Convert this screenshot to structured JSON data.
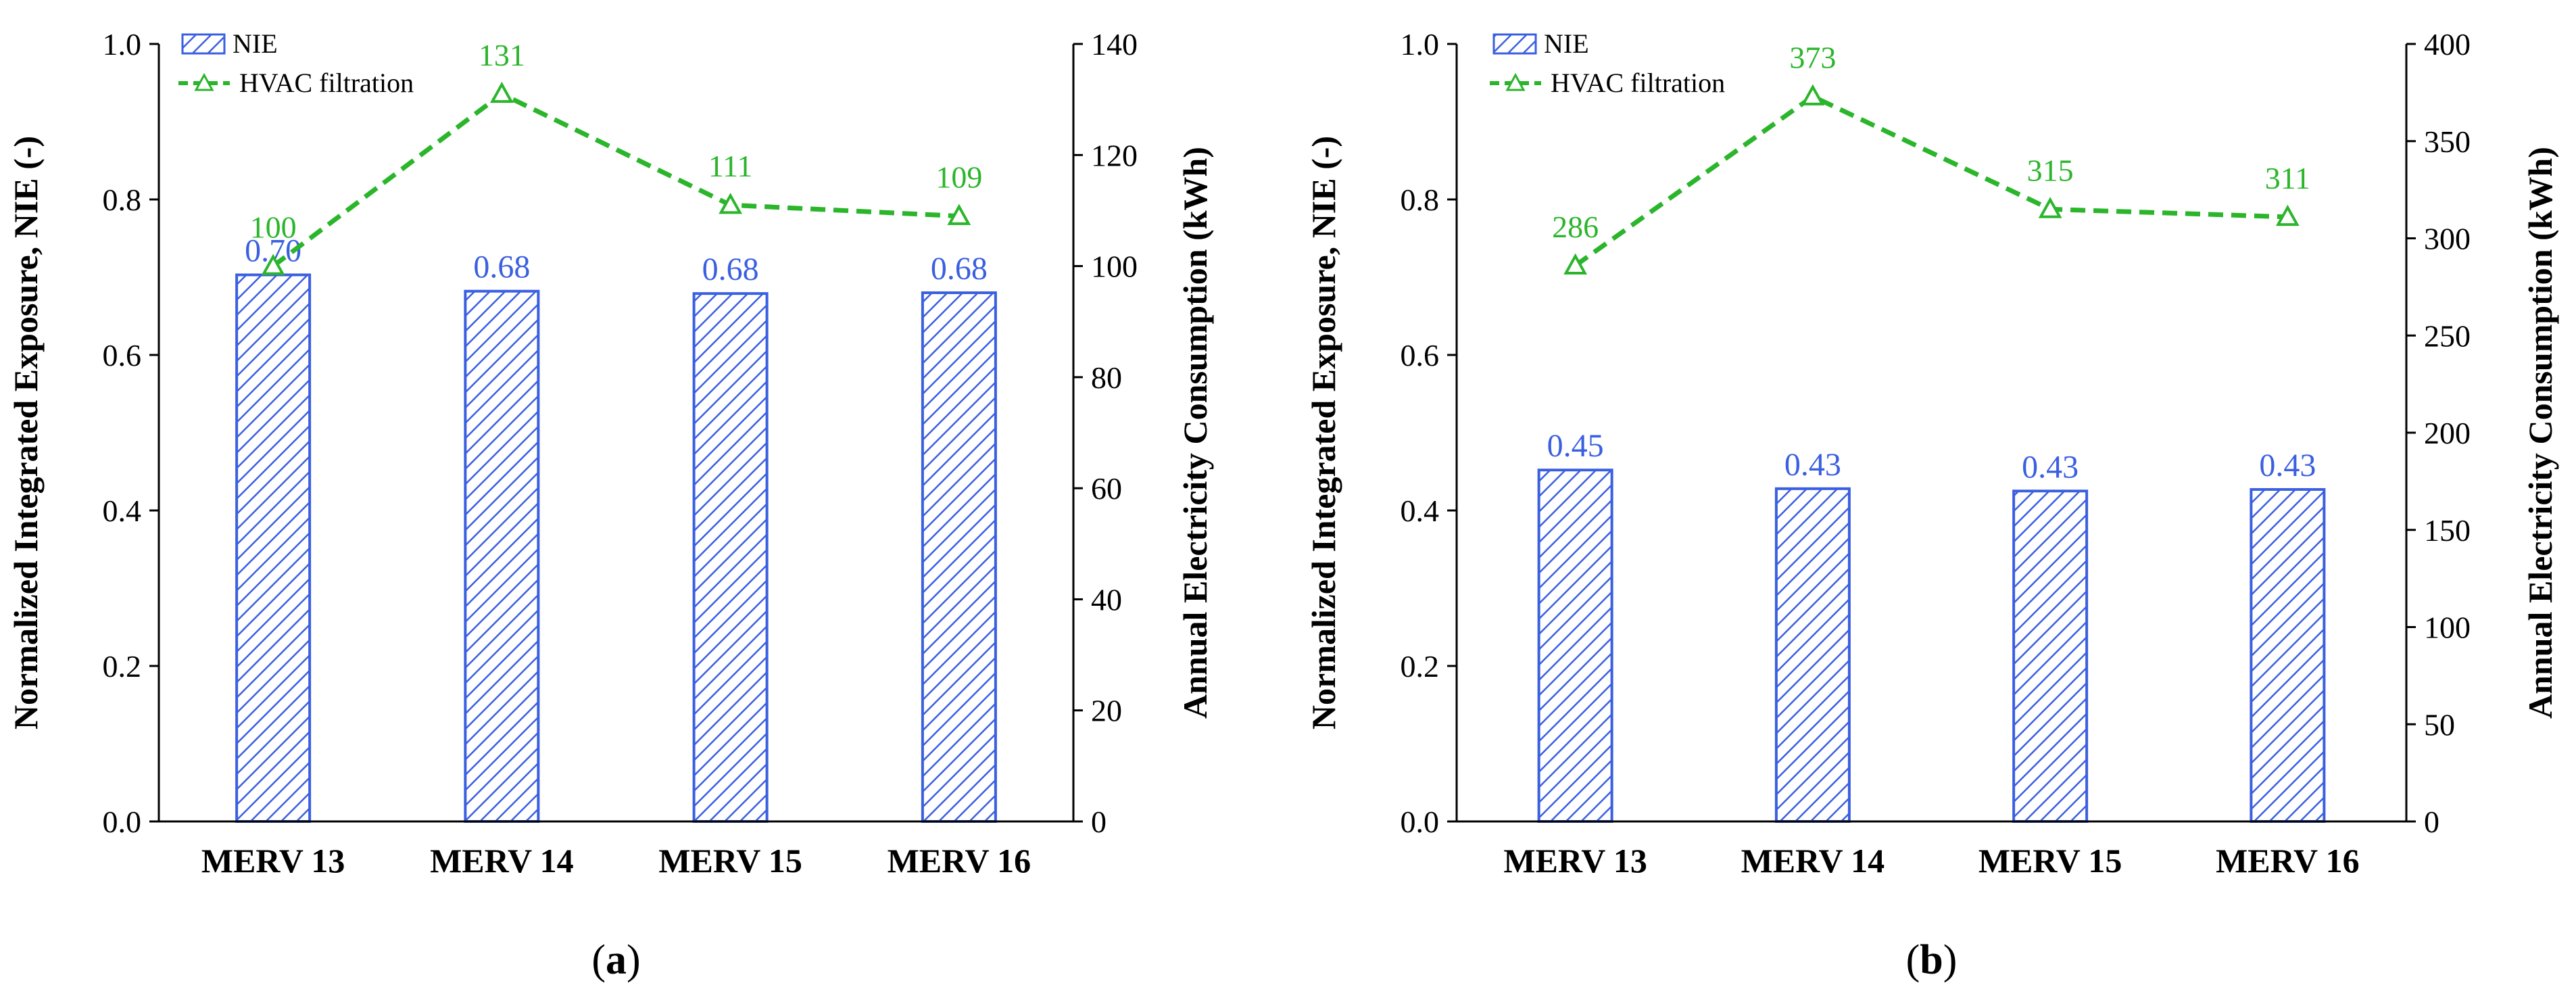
{
  "colors": {
    "bar": "#3a5fe0",
    "line": "#2bb52b",
    "axis": "#000000"
  },
  "chart_data": [
    {
      "type": "bar",
      "panel_label": "a",
      "categories": [
        "MERV 13",
        "MERV 14",
        "MERV 15",
        "MERV 16"
      ],
      "left_axis": {
        "label": "Normalized Integrated Exposure, NIE (-)",
        "range": [
          0,
          1.0
        ],
        "ticks": [
          "0.0",
          "0.2",
          "0.4",
          "0.6",
          "0.8",
          "1.0"
        ]
      },
      "right_axis": {
        "label": "Annual Electricity Consumption (kWh)",
        "range": [
          0,
          140
        ],
        "ticks": [
          "0",
          "20",
          "40",
          "60",
          "80",
          "100",
          "120",
          "140"
        ]
      },
      "series": [
        {
          "name": "NIE",
          "kind": "bar",
          "axis": "left",
          "values": [
            0.703,
            0.682,
            0.679,
            0.68
          ],
          "labels": [
            "0.70",
            "0.68",
            "0.68",
            "0.68"
          ]
        },
        {
          "name": "HVAC filtration",
          "kind": "line",
          "axis": "right",
          "values": [
            100,
            131,
            111,
            109
          ],
          "labels": [
            "100",
            "131",
            "111",
            "109"
          ]
        }
      ],
      "legend": [
        "NIE",
        "HVAC filtration"
      ],
      "legend_position": "top-left"
    },
    {
      "type": "bar",
      "panel_label": "b",
      "categories": [
        "MERV 13",
        "MERV 14",
        "MERV 15",
        "MERV 16"
      ],
      "left_axis": {
        "label": "Normalized Integrated Exposure, NIE (-)",
        "range": [
          0,
          1.0
        ],
        "ticks": [
          "0.0",
          "0.2",
          "0.4",
          "0.6",
          "0.8",
          "1.0"
        ]
      },
      "right_axis": {
        "label": "Annual Electricity Consumption (kWh)",
        "range": [
          0,
          400
        ],
        "ticks": [
          "0",
          "50",
          "100",
          "150",
          "200",
          "250",
          "300",
          "350",
          "400"
        ]
      },
      "series": [
        {
          "name": "NIE",
          "kind": "bar",
          "axis": "left",
          "values": [
            0.452,
            0.428,
            0.425,
            0.427
          ],
          "labels": [
            "0.45",
            "0.43",
            "0.43",
            "0.43"
          ]
        },
        {
          "name": "HVAC filtration",
          "kind": "line",
          "axis": "right",
          "values": [
            286,
            373,
            315,
            311
          ],
          "labels": [
            "286",
            "373",
            "315",
            "311"
          ]
        }
      ],
      "legend": [
        "NIE",
        "HVAC filtration"
      ],
      "legend_position": "top-left"
    }
  ]
}
